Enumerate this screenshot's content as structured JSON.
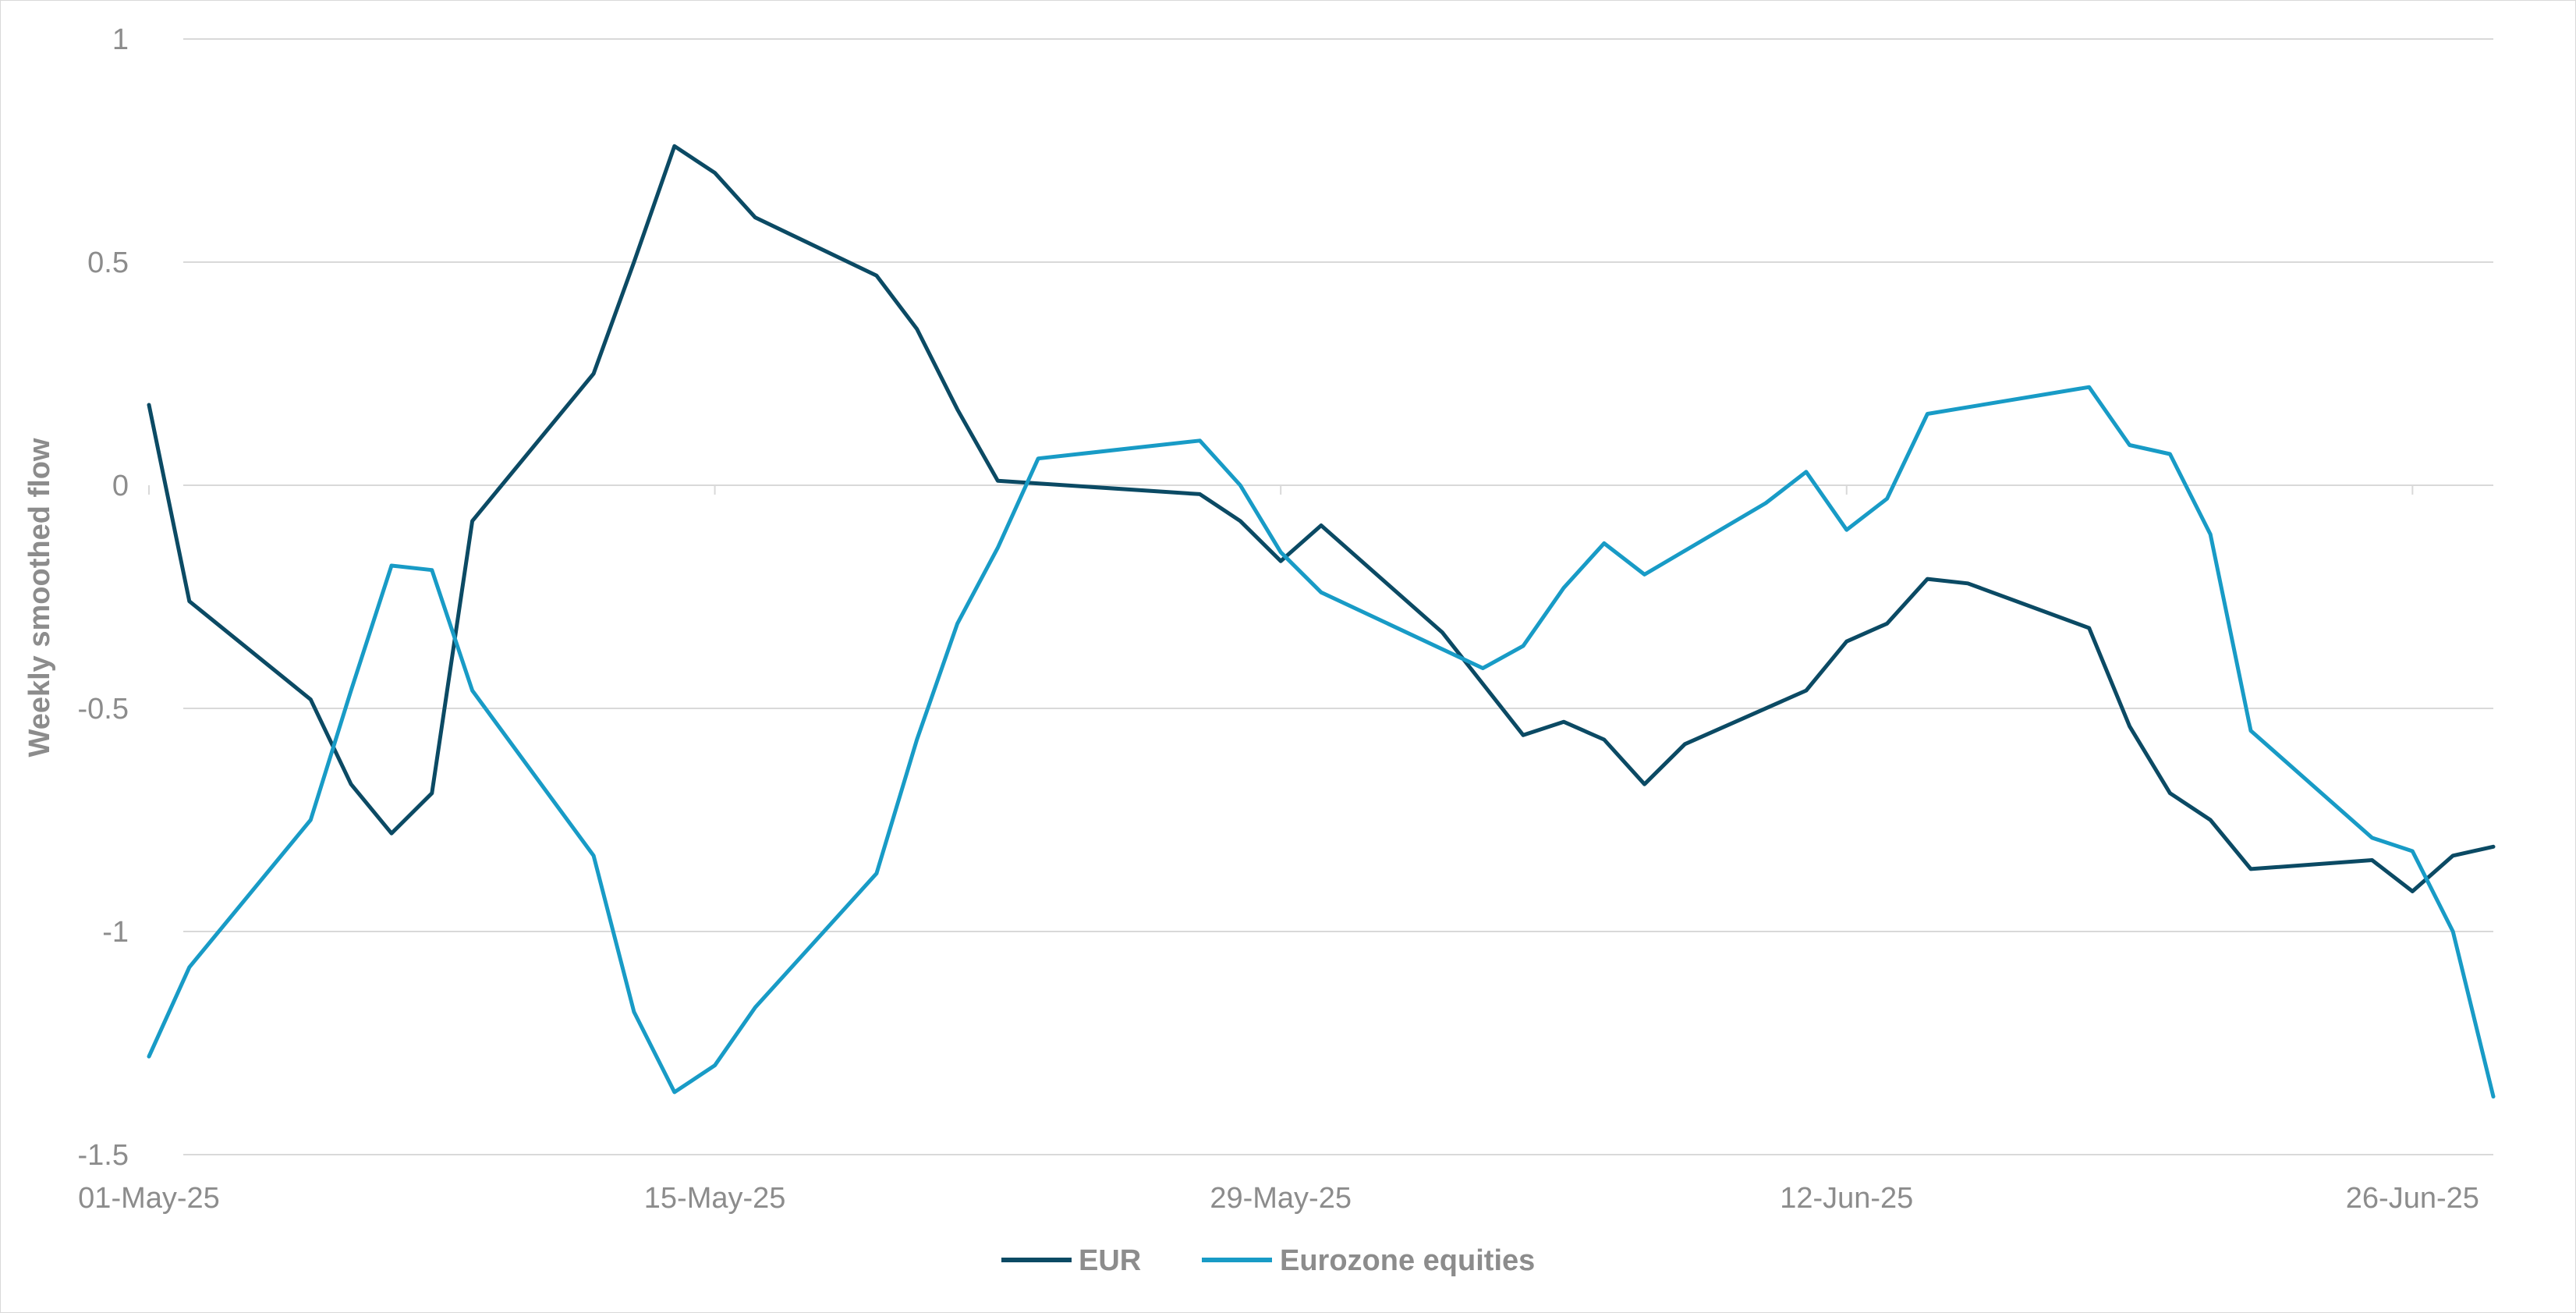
{
  "chart_data": {
    "type": "line",
    "title": "",
    "xlabel": "",
    "ylabel": "Weekly smoothed flow",
    "xlim": [
      "2025-05-01",
      "2025-06-28"
    ],
    "ylim": [
      -1.5,
      1
    ],
    "yticks": [
      1,
      0.5,
      0,
      -0.5,
      -1,
      -1.5
    ],
    "ytick_labels": [
      "1",
      "0.5",
      "0",
      "-0.5",
      "-1",
      "-1.5"
    ],
    "xticks": [
      "2025-05-01",
      "2025-05-15",
      "2025-05-29",
      "2025-06-12",
      "2025-06-26"
    ],
    "xtick_labels": [
      "01-May-25",
      "15-May-25",
      "29-May-25",
      "12-Jun-25",
      "26-Jun-25"
    ],
    "grid": true,
    "legend_position": "bottom-center",
    "series": [
      {
        "name": "EUR",
        "color": "#0b4a64",
        "points": [
          [
            "2025-05-01",
            0.18
          ],
          [
            "2025-05-02",
            -0.26
          ],
          [
            "2025-05-05",
            -0.48
          ],
          [
            "2025-05-06",
            -0.67
          ],
          [
            "2025-05-07",
            -0.78
          ],
          [
            "2025-05-08",
            -0.69
          ],
          [
            "2025-05-09",
            -0.08
          ],
          [
            "2025-05-12",
            0.25
          ],
          [
            "2025-05-13",
            0.5
          ],
          [
            "2025-05-14",
            0.76
          ],
          [
            "2025-05-15",
            0.7
          ],
          [
            "2025-05-16",
            0.6
          ],
          [
            "2025-05-19",
            0.47
          ],
          [
            "2025-05-20",
            0.35
          ],
          [
            "2025-05-21",
            0.17
          ],
          [
            "2025-05-22",
            0.01
          ],
          [
            "2025-05-27",
            -0.02
          ],
          [
            "2025-05-28",
            -0.08
          ],
          [
            "2025-05-29",
            -0.17
          ],
          [
            "2025-05-30",
            -0.09
          ],
          [
            "2025-06-02",
            -0.33
          ],
          [
            "2025-06-04",
            -0.56
          ],
          [
            "2025-06-05",
            -0.53
          ],
          [
            "2025-06-06",
            -0.57
          ],
          [
            "2025-06-07",
            -0.67
          ],
          [
            "2025-06-08",
            -0.58
          ],
          [
            "2025-06-11",
            -0.46
          ],
          [
            "2025-06-12",
            -0.35
          ],
          [
            "2025-06-13",
            -0.31
          ],
          [
            "2025-06-14",
            -0.21
          ],
          [
            "2025-06-15",
            -0.22
          ],
          [
            "2025-06-18",
            -0.32
          ],
          [
            "2025-06-19",
            -0.54
          ],
          [
            "2025-06-20",
            -0.69
          ],
          [
            "2025-06-21",
            -0.75
          ],
          [
            "2025-06-22",
            -0.86
          ],
          [
            "2025-06-25",
            -0.84
          ],
          [
            "2025-06-26",
            -0.91
          ],
          [
            "2025-06-27",
            -0.83
          ],
          [
            "2025-06-28",
            -0.81
          ]
        ]
      },
      {
        "name": "Eurozone equities",
        "color": "#189bc6",
        "points": [
          [
            "2025-05-01",
            -1.28
          ],
          [
            "2025-05-02",
            -1.08
          ],
          [
            "2025-05-05",
            -0.75
          ],
          [
            "2025-05-06",
            -0.46
          ],
          [
            "2025-05-07",
            -0.18
          ],
          [
            "2025-05-08",
            -0.19
          ],
          [
            "2025-05-09",
            -0.46
          ],
          [
            "2025-05-12",
            -0.83
          ],
          [
            "2025-05-13",
            -1.18
          ],
          [
            "2025-05-14",
            -1.36
          ],
          [
            "2025-05-15",
            -1.3
          ],
          [
            "2025-05-16",
            -1.17
          ],
          [
            "2025-05-19",
            -0.87
          ],
          [
            "2025-05-20",
            -0.57
          ],
          [
            "2025-05-21",
            -0.31
          ],
          [
            "2025-05-22",
            -0.14
          ],
          [
            "2025-05-23",
            0.06
          ],
          [
            "2025-05-27",
            0.1
          ],
          [
            "2025-05-28",
            0.0
          ],
          [
            "2025-05-29",
            -0.15
          ],
          [
            "2025-05-30",
            -0.24
          ],
          [
            "2025-06-03",
            -0.41
          ],
          [
            "2025-06-04",
            -0.36
          ],
          [
            "2025-06-05",
            -0.23
          ],
          [
            "2025-06-06",
            -0.13
          ],
          [
            "2025-06-07",
            -0.2
          ],
          [
            "2025-06-10",
            -0.04
          ],
          [
            "2025-06-11",
            0.03
          ],
          [
            "2025-06-12",
            -0.1
          ],
          [
            "2025-06-13",
            -0.03
          ],
          [
            "2025-06-14",
            0.16
          ],
          [
            "2025-06-18",
            0.22
          ],
          [
            "2025-06-19",
            0.09
          ],
          [
            "2025-06-20",
            0.07
          ],
          [
            "2025-06-21",
            -0.11
          ],
          [
            "2025-06-22",
            -0.55
          ],
          [
            "2025-06-25",
            -0.79
          ],
          [
            "2025-06-26",
            -0.82
          ],
          [
            "2025-06-27",
            -1.0
          ],
          [
            "2025-06-28",
            -1.37
          ]
        ]
      }
    ]
  }
}
